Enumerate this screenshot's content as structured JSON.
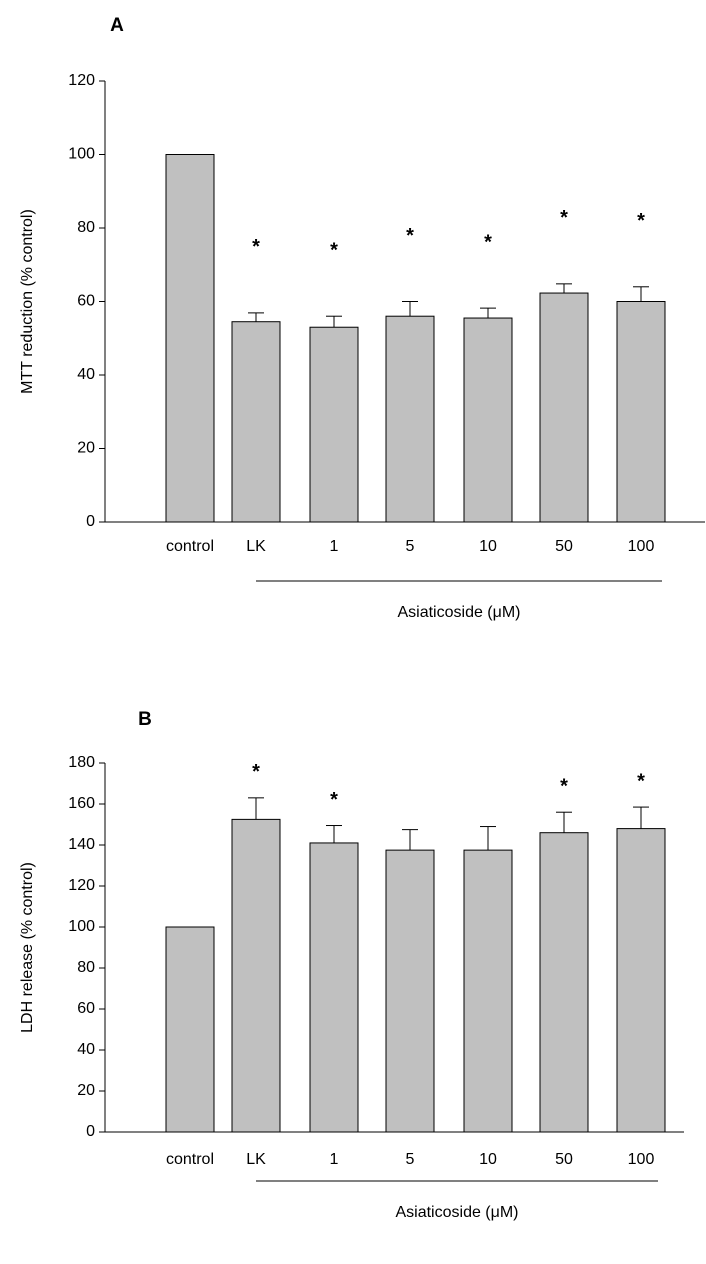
{
  "chart_data": [
    {
      "type": "bar",
      "title": "A",
      "ylabel": "MTT reduction (% control)",
      "group_label": "Asiaticoside (μM)",
      "categories": [
        "control",
        "LK",
        "1",
        "5",
        "10",
        "50",
        "100"
      ],
      "values": [
        100,
        54.5,
        53,
        56,
        55.5,
        62.3,
        60
      ],
      "errors": [
        null,
        2.4,
        3,
        4,
        2.7,
        2.5,
        4
      ],
      "annotations": [
        null,
        "*",
        "*",
        "*",
        "*",
        "*",
        "*"
      ],
      "color": "#c0c0c0",
      "ylim": [
        0,
        120
      ],
      "yticks": [
        0,
        20,
        40,
        60,
        80,
        100,
        120
      ]
    },
    {
      "type": "bar",
      "title": "B",
      "ylabel": "LDH release (% control)",
      "group_label": "Asiaticoside (μM)",
      "categories": [
        "control",
        "LK",
        "1",
        "5",
        "10",
        "50",
        "100"
      ],
      "values": [
        100,
        152.5,
        141,
        137.5,
        137.5,
        146,
        148
      ],
      "errors": [
        null,
        10.5,
        8.5,
        10,
        11.5,
        10,
        10.5
      ],
      "annotations": [
        null,
        "*",
        "*",
        null,
        null,
        "*",
        "*"
      ],
      "color": "#c0c0c0",
      "ylim": [
        0,
        180
      ],
      "yticks": [
        0,
        20,
        40,
        60,
        80,
        100,
        120,
        140,
        160,
        180
      ]
    }
  ]
}
